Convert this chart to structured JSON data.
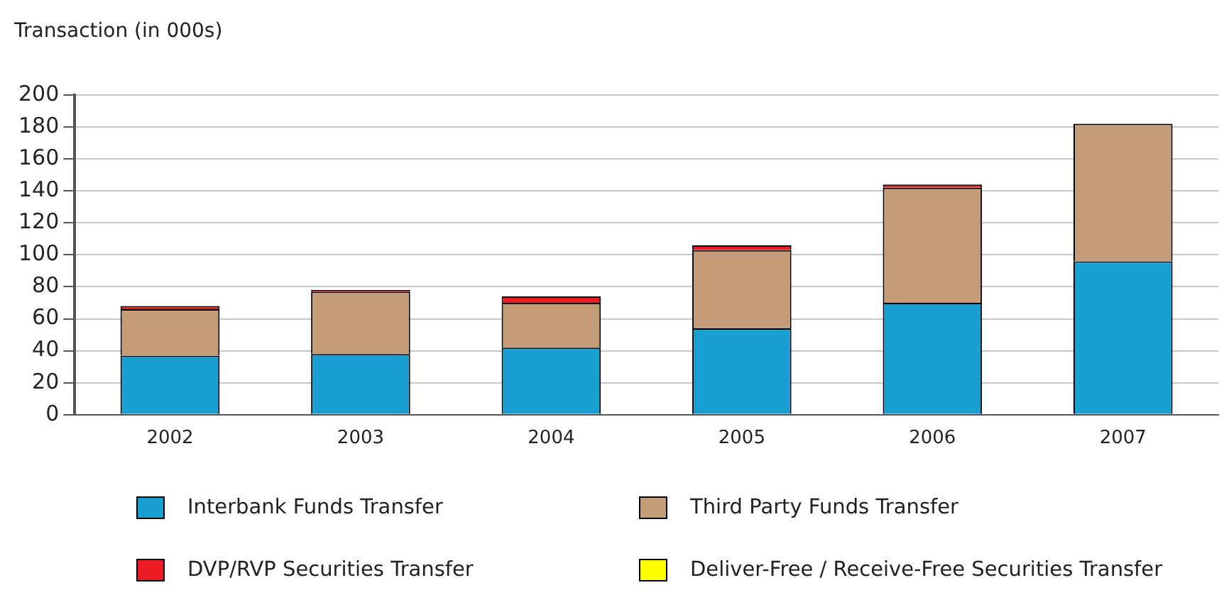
{
  "chart_data": {
    "type": "bar",
    "ylabel": "Transaction (in 000s)",
    "categories": [
      "2002",
      "2003",
      "2004",
      "2005",
      "2006",
      "2007"
    ],
    "stacked": true,
    "series": [
      {
        "name": "Interbank Funds Transfer",
        "color": "#1a9fd3",
        "values": [
          37,
          38,
          42,
          54,
          70,
          96
        ]
      },
      {
        "name": "Third Party Funds Transfer",
        "color": "#c49c77",
        "values": [
          29,
          39,
          28,
          49,
          72,
          86
        ]
      },
      {
        "name": "DVP/RVP Securities Transfer",
        "color": "#ed1c24",
        "values": [
          2,
          1,
          4,
          3,
          2,
          0
        ]
      },
      {
        "name": "Deliver-Free / Receive-Free Securities Transfer",
        "color": "#ffff00",
        "values": [
          0,
          0,
          0,
          0,
          0,
          0
        ]
      }
    ],
    "ylim": [
      0,
      200
    ],
    "yticks": [
      0,
      20,
      40,
      60,
      80,
      100,
      120,
      140,
      160,
      180,
      200
    ],
    "grid": "y",
    "legend": "bottom"
  }
}
